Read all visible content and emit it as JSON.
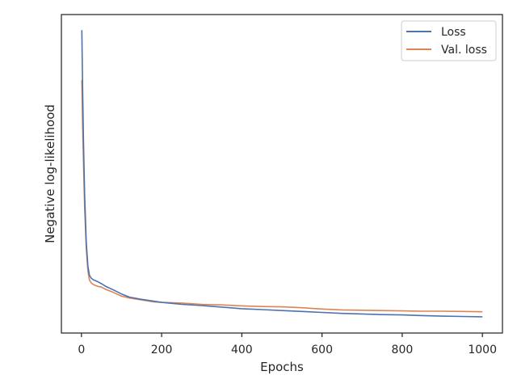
{
  "chart_data": {
    "type": "line",
    "title": "",
    "xlabel": "Epochs",
    "ylabel": "Negative log-likelihood",
    "xlim": [
      -50,
      1050
    ],
    "xticks": [
      0,
      200,
      400,
      600,
      800,
      1000
    ],
    "xtick_labels": [
      "0",
      "200",
      "400",
      "600",
      "800",
      "1000"
    ],
    "yticks_shown": false,
    "ylim": [
      -0.2,
      10.0
    ],
    "grid": false,
    "legend_position": "top-right",
    "series": [
      {
        "name": "Loss",
        "color": "#4c72b0",
        "x": [
          1,
          3,
          5,
          8,
          12,
          16,
          20,
          25,
          30,
          40,
          50,
          60,
          80,
          100,
          120,
          150,
          180,
          200,
          250,
          300,
          350,
          400,
          450,
          500,
          550,
          600,
          650,
          700,
          750,
          800,
          850,
          900,
          950,
          1000
        ],
        "y": [
          9.5,
          7.6,
          6.0,
          4.2,
          2.7,
          1.95,
          1.65,
          1.55,
          1.5,
          1.45,
          1.38,
          1.3,
          1.18,
          1.05,
          0.95,
          0.88,
          0.82,
          0.78,
          0.72,
          0.68,
          0.63,
          0.58,
          0.55,
          0.52,
          0.49,
          0.46,
          0.43,
          0.41,
          0.39,
          0.38,
          0.36,
          0.34,
          0.33,
          0.32
        ]
      },
      {
        "name": "Val. loss",
        "color": "#dd8452",
        "x": [
          1,
          3,
          5,
          8,
          12,
          16,
          20,
          25,
          30,
          40,
          50,
          60,
          80,
          100,
          120,
          150,
          180,
          200,
          250,
          300,
          350,
          400,
          450,
          500,
          550,
          600,
          650,
          700,
          750,
          800,
          850,
          900,
          950,
          1000
        ],
        "y": [
          7.9,
          6.4,
          5.3,
          3.8,
          2.5,
          1.8,
          1.5,
          1.4,
          1.35,
          1.3,
          1.27,
          1.2,
          1.1,
          0.98,
          0.92,
          0.86,
          0.8,
          0.78,
          0.76,
          0.72,
          0.7,
          0.67,
          0.65,
          0.64,
          0.61,
          0.57,
          0.54,
          0.53,
          0.52,
          0.51,
          0.5,
          0.5,
          0.49,
          0.48
        ]
      }
    ]
  }
}
